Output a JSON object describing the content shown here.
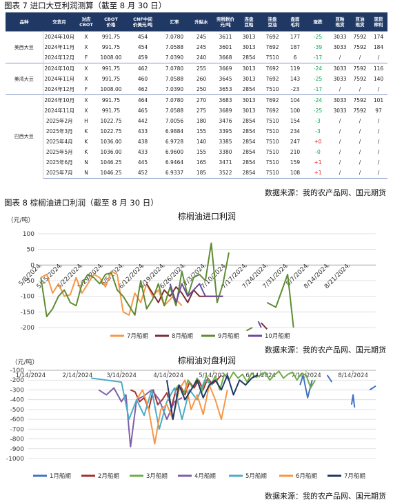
{
  "captions": [
    "图表 7 进口大豆利润测算（截至 8 月 30 日）",
    "图表 8 棕榈油进口利润（截至 8 月 30 日）"
  ],
  "sources": [
    "数据来源：我的农产品网、国元期货",
    "数据来源：我的农产品网、国元期货",
    "数据来源：我的农产品网、国元期货"
  ],
  "table": {
    "header": [
      [
        "品种"
      ],
      [
        "交货月"
      ],
      [
        "对应",
        "CBOT"
      ],
      [
        "CBOT",
        "价格"
      ],
      [
        "CNF中间",
        "价美元/吨"
      ],
      [
        "汇率"
      ],
      [
        "升贴水"
      ],
      [
        "完税税价",
        "元/吨"
      ],
      [
        "连盘",
        "豆粕"
      ],
      [
        "连盘",
        "豆油"
      ],
      [
        "盘面",
        "毛利"
      ],
      [
        "涨跌"
      ],
      [
        "豆粕",
        "现货"
      ],
      [
        "豆油",
        "现货"
      ],
      [
        "现货",
        "榨利"
      ]
    ],
    "groups": [
      {
        "name": "美西大豆",
        "rows": [
          [
            "2024年10月",
            "X",
            "991.75",
            "454",
            "7.0780",
            "245",
            "3611",
            "3013",
            "7692",
            "177",
            "-25",
            "3033",
            "7592",
            "174"
          ],
          [
            "2024年11月",
            "X",
            "991.75",
            "454",
            "7.0588",
            "245",
            "3601",
            "3013",
            "7692",
            "187",
            "-39",
            "3033",
            "7592",
            "184"
          ],
          [
            "2024年12月",
            "F",
            "1008.00",
            "459",
            "7.0390",
            "240",
            "3668",
            "2854",
            "7510",
            "6",
            "-17",
            "/",
            "/",
            "/"
          ]
        ]
      },
      {
        "name": "美湾大豆",
        "rows": [
          [
            "2024年10月",
            "X",
            "991.75",
            "462",
            "7.0780",
            "255",
            "3669",
            "3013",
            "7692",
            "119",
            "-24",
            "3033",
            "7592",
            "116"
          ],
          [
            "2024年11月",
            "X",
            "991.75",
            "460",
            "7.0588",
            "260",
            "3645",
            "3013",
            "7692",
            "143",
            "-25",
            "3033",
            "7592",
            "140"
          ],
          [
            "2024年12月",
            "F",
            "1008.00",
            "462",
            "7.0390",
            "250",
            "3653",
            "2854",
            "7510",
            "-23",
            "-17",
            "/",
            "/",
            "/"
          ]
        ]
      },
      {
        "name": "巴西大豆",
        "rows": [
          [
            "2024年10月",
            "X",
            "991.75",
            "464",
            "7.0780",
            "270",
            "3683",
            "3013",
            "7692",
            "104",
            "-24",
            "3033",
            "7592",
            "101"
          ],
          [
            "2024年11月",
            "X",
            "991.75",
            "465",
            "7.0588",
            "275",
            "3689",
            "3013",
            "7692",
            "100",
            "-25",
            "3033",
            "7592",
            "97"
          ],
          [
            "2025年2月",
            "H",
            "1022.75",
            "442",
            "7.0056",
            "180",
            "3476",
            "2854",
            "7510",
            "154",
            "-3",
            "/",
            "/",
            "/"
          ],
          [
            "2025年3月",
            "K",
            "1022.75",
            "433",
            "6.9884",
            "155",
            "3395",
            "2854",
            "7510",
            "234",
            "-3",
            "/",
            "/",
            "/"
          ],
          [
            "2025年4月",
            "K",
            "1036.00",
            "438",
            "6.9728",
            "140",
            "3385",
            "2854",
            "7510",
            "247",
            "+0",
            "/",
            "/",
            "/"
          ],
          [
            "2025年5月",
            "K",
            "1036.00",
            "433",
            "6.9600",
            "155",
            "3380",
            "2854",
            "7510",
            "210",
            "-0",
            "/",
            "/",
            "/"
          ],
          [
            "2025年6月",
            "N",
            "1046.25",
            "445",
            "6.9464",
            "165",
            "3471",
            "2854",
            "7510",
            "159",
            "+1",
            "/",
            "/",
            "/"
          ],
          [
            "2025年7月",
            "N",
            "1046.25",
            "452",
            "6.9337",
            "185",
            "3522",
            "2854",
            "7510",
            "108",
            "+1",
            "/",
            "/",
            "/"
          ]
        ]
      }
    ]
  },
  "chart_data": [
    {
      "type": "line",
      "title": "棕榈油进口利润",
      "y_unit": "（元/吨）",
      "legend": "bottom",
      "grid": true,
      "xlim": [
        -1,
        114
      ],
      "xticks": [
        {
          "value": 0,
          "label": "5/8/2024"
        },
        {
          "value": 7,
          "label": "5/15/2024"
        },
        {
          "value": 14,
          "label": "5/22/2024"
        },
        {
          "value": 21,
          "label": "5/29/2024"
        },
        {
          "value": 28,
          "label": "6/5/2024"
        },
        {
          "value": 35,
          "label": "6/12/2024"
        },
        {
          "value": 42,
          "label": "6/19/2024"
        },
        {
          "value": 49,
          "label": "6/26/2024"
        },
        {
          "value": 56,
          "label": "7/3/2024"
        },
        {
          "value": 63,
          "label": "7/10/2024"
        },
        {
          "value": 70,
          "label": "7/17/2024"
        },
        {
          "value": 77,
          "label": "7/24/2024"
        },
        {
          "value": 84,
          "label": "7/31/2024"
        },
        {
          "value": 91,
          "label": "8/7/2024"
        },
        {
          "value": 98,
          "label": "8/14/2024"
        },
        {
          "value": 105,
          "label": "8/21/2024"
        }
      ],
      "ylim": [
        -200,
        100
      ],
      "yticks": [
        100,
        50,
        0,
        -50,
        -100,
        -150,
        -200
      ],
      "series": [
        {
          "name": "7月船期",
          "color": "#f79646",
          "x": [
            0,
            2,
            4,
            6,
            8,
            10,
            12,
            14,
            16,
            18,
            20,
            22,
            24,
            26,
            28,
            30,
            32,
            34,
            36,
            38,
            40,
            42,
            45,
            48
          ],
          "values": [
            -40,
            -30,
            -90,
            -60,
            -100,
            -95,
            -40,
            -90,
            -60,
            -30,
            -40,
            -70,
            -20,
            -30,
            -150,
            -160,
            -90,
            -120,
            -60,
            -100,
            -80,
            -130,
            -100,
            -130
          ]
        },
        {
          "name": "8月船期",
          "color": "#7b2c34",
          "x": [
            36,
            38,
            40,
            42,
            44,
            46,
            48,
            50,
            52,
            54,
            56,
            58,
            60,
            62,
            66,
            75,
            77
          ],
          "values": [
            -60,
            -90,
            -120,
            -80,
            -100,
            -70,
            -90,
            -120,
            -80,
            -100,
            -100,
            -100,
            -100,
            -100,
            null,
            -185,
            -205
          ]
        },
        {
          "name": "9月船期",
          "color": "#5e8c31",
          "x": [
            0,
            2,
            4,
            6,
            8,
            10,
            12,
            14,
            16,
            18,
            20,
            22,
            24,
            26,
            28,
            30,
            32,
            34,
            36,
            38,
            40,
            42,
            44,
            46,
            48,
            50,
            52,
            54,
            56,
            58,
            60,
            62,
            64,
            66,
            70,
            72,
            74,
            77,
            80,
            84,
            86
          ],
          "values": [
            -40,
            -165,
            -140,
            -100,
            -80,
            -120,
            -130,
            -60,
            -30,
            -40,
            -60,
            -30,
            -25,
            -80,
            -100,
            -130,
            -160,
            -50,
            -140,
            -110,
            -60,
            -130,
            -70,
            -130,
            -20,
            -100,
            -40,
            -30,
            -50,
            70,
            -120,
            -60,
            40,
            null,
            -210,
            -200,
            null,
            -120,
            -135,
            -30,
            -200
          ]
        },
        {
          "name": "10月船期",
          "color": "#6a4a9c",
          "x": [
            44,
            46,
            48,
            50,
            52,
            54,
            56,
            58,
            60,
            62,
            66,
            74,
            75
          ],
          "values": [
            -60,
            -120,
            -60,
            -100,
            -80,
            -60,
            -100,
            -100,
            -100,
            -100,
            null,
            -180,
            -200
          ]
        }
      ]
    },
    {
      "type": "line",
      "title": "棕榈油对盘利润",
      "y_unit": "（元/吨）",
      "legend": "bottom",
      "grid": true,
      "xlim": [
        -2,
        228
      ],
      "xticks": [
        {
          "value": 0,
          "label": "1/14/2024"
        },
        {
          "value": 31,
          "label": "2/14/2024"
        },
        {
          "value": 60,
          "label": "3/14/2024"
        },
        {
          "value": 91,
          "label": "4/14/2024"
        },
        {
          "value": 121,
          "label": "5/14/2024"
        },
        {
          "value": 152,
          "label": "6/14/2024"
        },
        {
          "value": 182,
          "label": "7/14/2024"
        },
        {
          "value": 213,
          "label": "8/14/2024"
        }
      ],
      "ylim": [
        -1000,
        -100
      ],
      "yticks": [
        -100,
        -200,
        -300,
        -400,
        -500,
        -600,
        -700,
        -800,
        -900,
        -1000
      ],
      "series": [
        {
          "name": "1月船期",
          "color": "#4472c4",
          "x": [
            178,
            180,
            183,
            186,
            190,
            196,
            199,
            205,
            212,
            213,
            214,
            218,
            224,
            228
          ],
          "values": [
            -250,
            -150,
            -380,
            -200,
            null,
            -150,
            -220,
            null,
            -450,
            -350,
            -480,
            null,
            -300,
            -260
          ]
        },
        {
          "name": "2月船期",
          "color": "#a5302f",
          "x": [
            66,
            69,
            72,
            75,
            78,
            81,
            84,
            87,
            90,
            93,
            96,
            99,
            102,
            105,
            108,
            111,
            114,
            117,
            120,
            123,
            126
          ],
          "values": [
            -300,
            -320,
            -420,
            -380,
            -500,
            -300,
            -450,
            -400,
            -330,
            -480,
            -300,
            -260,
            -350,
            -220,
            -280,
            -200,
            -300,
            -180,
            -240,
            -200,
            -150
          ]
        },
        {
          "name": "3月船期",
          "color": "#70ad47",
          "x": [
            95,
            98,
            101,
            104,
            107,
            110,
            113,
            116,
            119,
            122,
            125,
            128,
            131,
            134,
            137,
            140,
            143,
            146,
            149,
            152,
            155,
            158,
            161,
            164,
            167,
            170,
            173,
            176,
            179,
            182,
            185,
            188
          ],
          "values": [
            -300,
            -250,
            -350,
            -200,
            -280,
            -180,
            -330,
            -150,
            -250,
            -160,
            -300,
            -140,
            -200,
            -120,
            -180,
            -140,
            -220,
            -130,
            -170,
            -150,
            -120,
            -200,
            -150,
            -110,
            -180,
            -140,
            -120,
            -200,
            -130,
            -150,
            -280,
            -200
          ]
        },
        {
          "name": "4月船期",
          "color": "#7f5fa8",
          "x": [
            45,
            50,
            55,
            60,
            63,
            66,
            70,
            75,
            80,
            85,
            90,
            95,
            100
          ],
          "values": [
            -300,
            -350,
            -280,
            -420,
            -350,
            -880,
            -400,
            -360,
            -300,
            -400,
            -600,
            -420,
            -380
          ]
        },
        {
          "name": "5月船期",
          "color": "#4bacc6",
          "x": [
            40,
            45,
            50,
            55,
            60,
            65,
            70,
            75,
            80,
            85,
            90,
            95,
            100,
            105,
            110,
            115,
            120
          ],
          "values": [
            -180,
            -190,
            -200,
            -210,
            -220,
            -600,
            -400,
            -560,
            -300,
            -700,
            -420,
            -280,
            -600,
            -300,
            -400,
            -200,
            -250
          ]
        },
        {
          "name": "6月船期",
          "color": "#f79646",
          "x": [
            70,
            74,
            78,
            82,
            86,
            90,
            94,
            98,
            102,
            106,
            110,
            114,
            118,
            122,
            126,
            130
          ],
          "values": [
            -400,
            -300,
            -500,
            -850,
            -500,
            -450,
            -600,
            -300,
            -200,
            -500,
            -350,
            -550,
            -250,
            -400,
            -600,
            -300
          ]
        },
        {
          "name": "7月船期",
          "color": "#1f3864",
          "x": [
            90,
            94,
            98,
            102,
            106,
            110,
            114,
            118,
            122,
            126,
            130,
            134,
            138,
            142,
            146,
            150
          ],
          "values": [
            -200,
            -600,
            -250,
            -400,
            -300,
            -200,
            -380,
            -250,
            -200,
            -300,
            -150,
            -350,
            -200,
            -250,
            -180,
            -150
          ]
        }
      ]
    }
  ]
}
